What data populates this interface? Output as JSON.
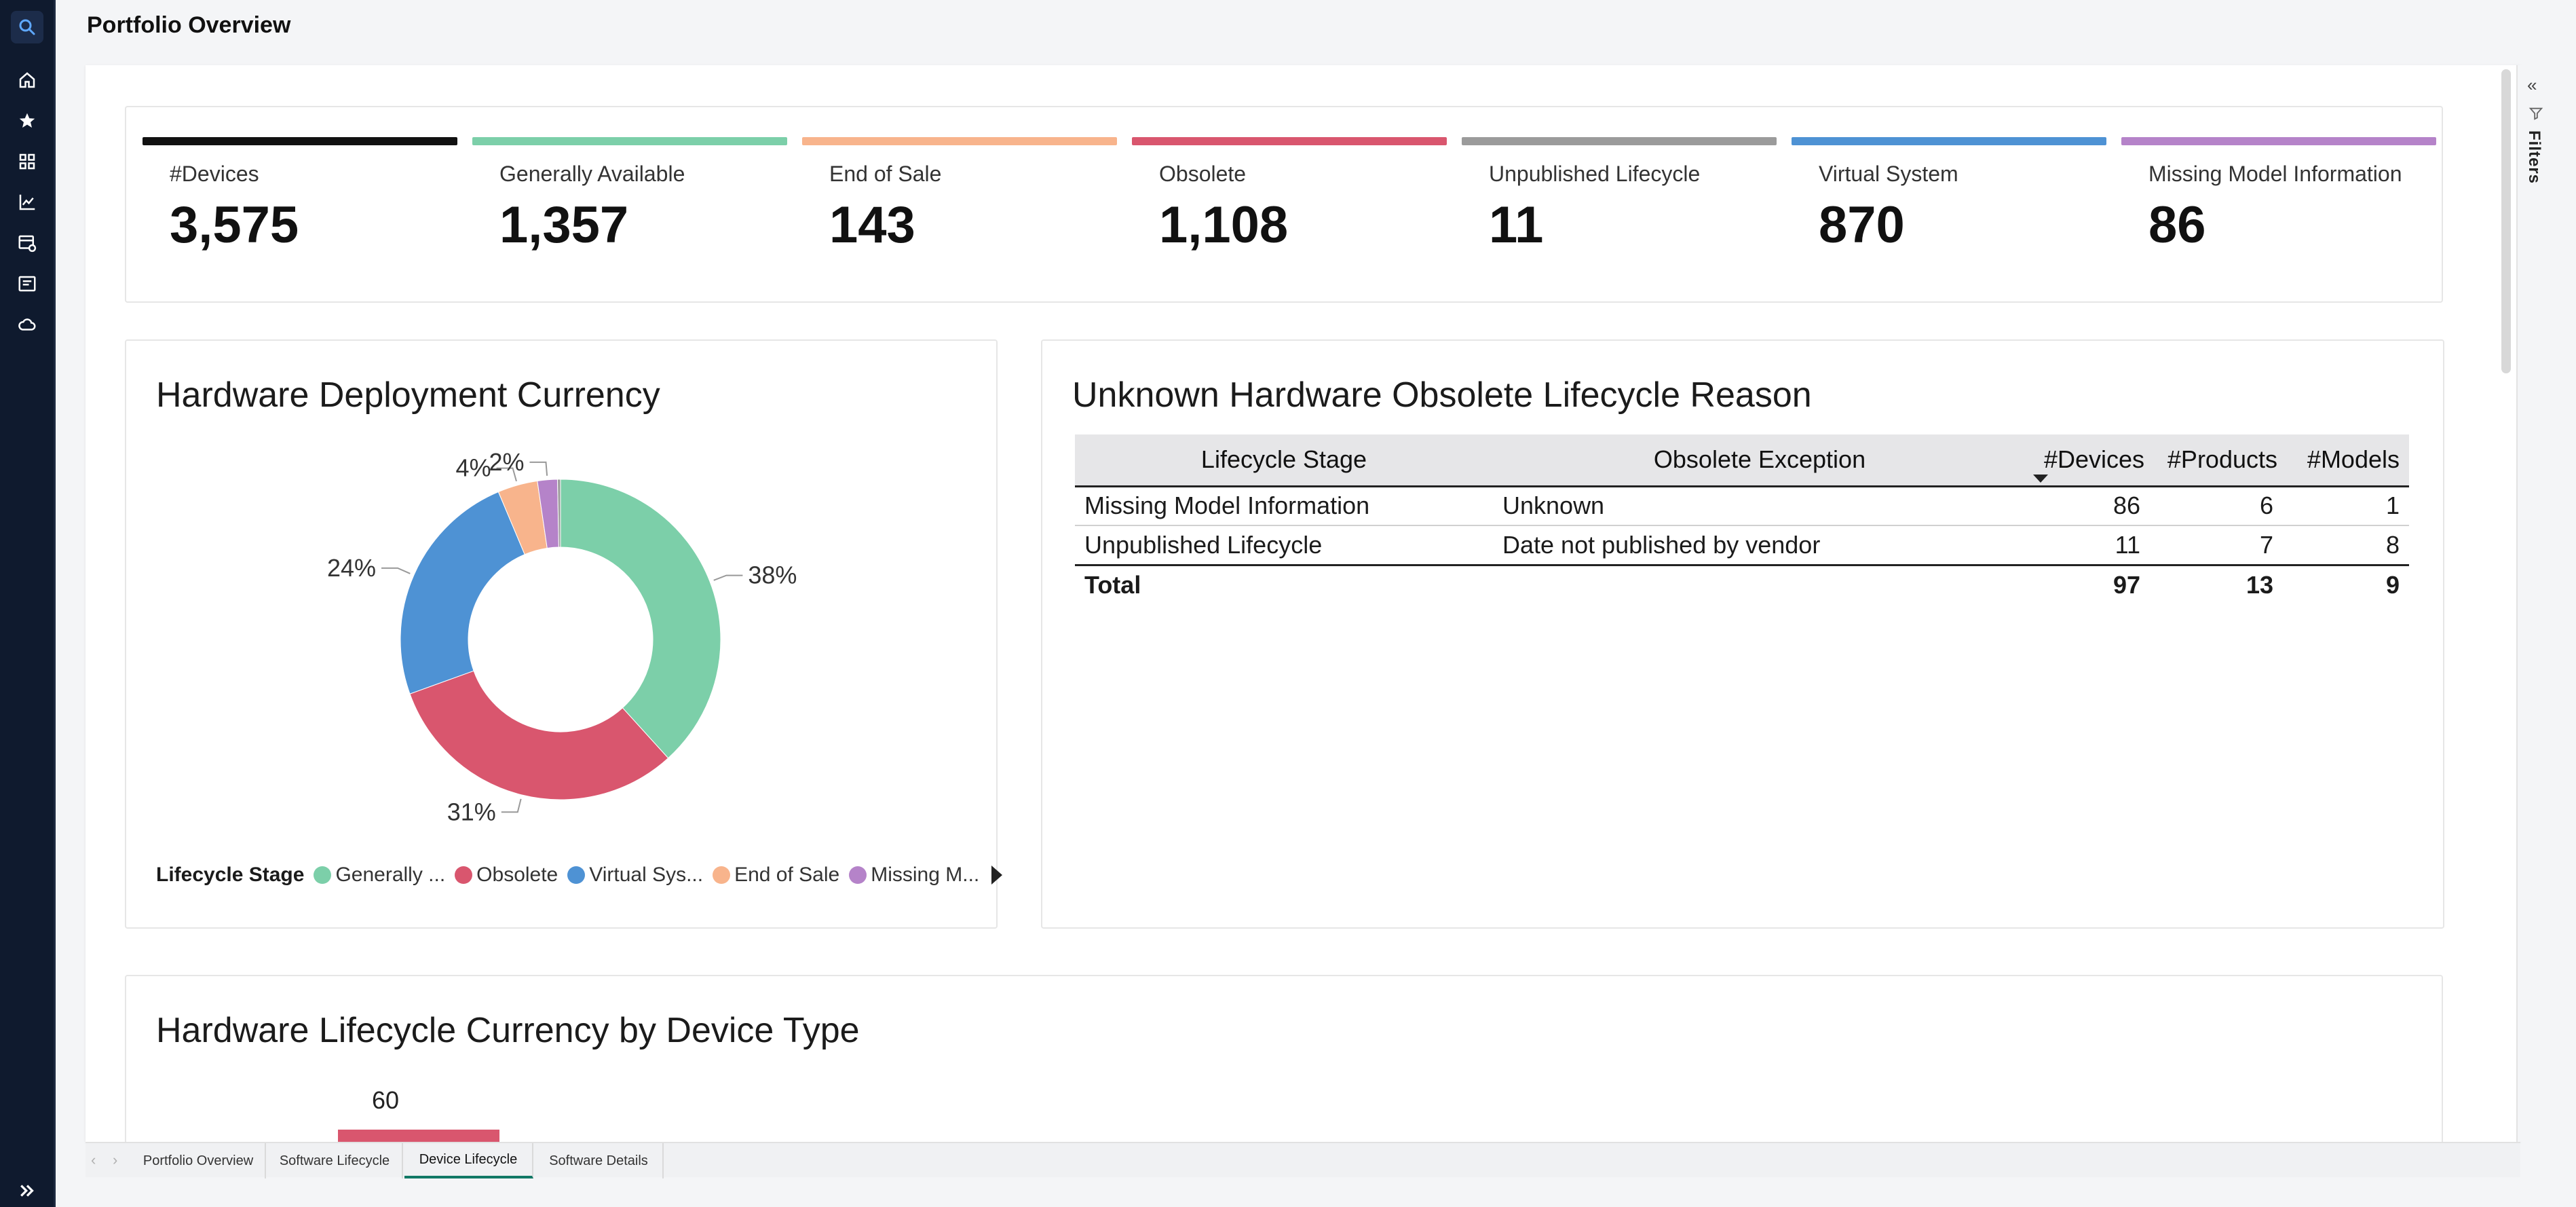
{
  "page": {
    "title": "Portfolio Overview"
  },
  "rail": {
    "items": [
      "search-icon",
      "home-icon",
      "star-icon",
      "apps-icon",
      "report-icon",
      "dashboard-settings-icon",
      "list-icon",
      "cloud-icon",
      "expand-icon"
    ]
  },
  "filters": {
    "label": "Filters",
    "collapse_glyph": "«"
  },
  "kpis": [
    {
      "label": "#Devices",
      "value": "3,575",
      "color": "#111111"
    },
    {
      "label": "Generally Available",
      "value": "1,357",
      "color": "#7ccfa9"
    },
    {
      "label": "End of Sale",
      "value": "143",
      "color": "#f8b48c"
    },
    {
      "label": "Obsolete",
      "value": "1,108",
      "color": "#d9566e"
    },
    {
      "label": "Unpublished Lifecycle",
      "value": "11",
      "color": "#9b9b9b"
    },
    {
      "label": "Virtual System",
      "value": "870",
      "color": "#4e92d4"
    },
    {
      "label": "Missing Model Information",
      "value": "86",
      "color": "#b583c9"
    }
  ],
  "donut": {
    "title": "Hardware Deployment Currency",
    "legend": {
      "title": "Lifecycle Stage",
      "items": [
        {
          "label": "Generally ...",
          "color": "#7ccfa9"
        },
        {
          "label": "Obsolete",
          "color": "#d9566e"
        },
        {
          "label": "Virtual Sys...",
          "color": "#4e92d4"
        },
        {
          "label": "End of Sale",
          "color": "#f8b48c"
        },
        {
          "label": "Missing M...",
          "color": "#b583c9"
        }
      ]
    }
  },
  "chart_data": [
    {
      "type": "pie",
      "title": "Hardware Deployment Currency",
      "legend_title": "Lifecycle Stage",
      "legend_placement": "bottom",
      "slices": [
        {
          "category": "Generally Available",
          "percent": 38,
          "label": "38%",
          "color": "#7ccfa9"
        },
        {
          "category": "Obsolete",
          "percent": 31,
          "label": "31%",
          "color": "#d9566e"
        },
        {
          "category": "Virtual System",
          "percent": 24,
          "label": "24%",
          "color": "#4e92d4"
        },
        {
          "category": "End of Sale",
          "percent": 4,
          "label": "4%",
          "color": "#f8b48c"
        },
        {
          "category": "Missing Model Information",
          "percent": 2,
          "label": "2%",
          "color": "#b583c9"
        },
        {
          "category": "Unpublished Lifecycle",
          "percent": 0.3,
          "label": "",
          "color": "#9b9b9b"
        }
      ]
    },
    {
      "type": "bar",
      "title": "Hardware Lifecycle Currency by Device Type",
      "values": [
        60
      ],
      "data_labels": [
        "60"
      ],
      "color": "#d9566e"
    }
  ],
  "obsolete_table": {
    "title": "Unknown Hardware Obsolete Lifecycle Reason",
    "headers": [
      "Lifecycle Stage",
      "Obsolete Exception",
      "#Devices",
      "#Products",
      "#Models"
    ],
    "rows": [
      [
        "Missing Model Information",
        "Unknown",
        "86",
        "6",
        "1"
      ],
      [
        "Unpublished Lifecycle",
        "Date not published by vendor",
        "11",
        "7",
        "8"
      ]
    ],
    "total": [
      "Total",
      "",
      "97",
      "13",
      "9"
    ]
  },
  "bottom_chart": {
    "title": "Hardware Lifecycle Currency by Device Type",
    "bar_label": "60"
  },
  "tabs": {
    "nav_prev": "‹",
    "nav_next": "›",
    "items": [
      "Portfolio Overview",
      "Software Lifecycle",
      "Device Lifecycle",
      "Software Details"
    ],
    "active": "Device Lifecycle"
  }
}
